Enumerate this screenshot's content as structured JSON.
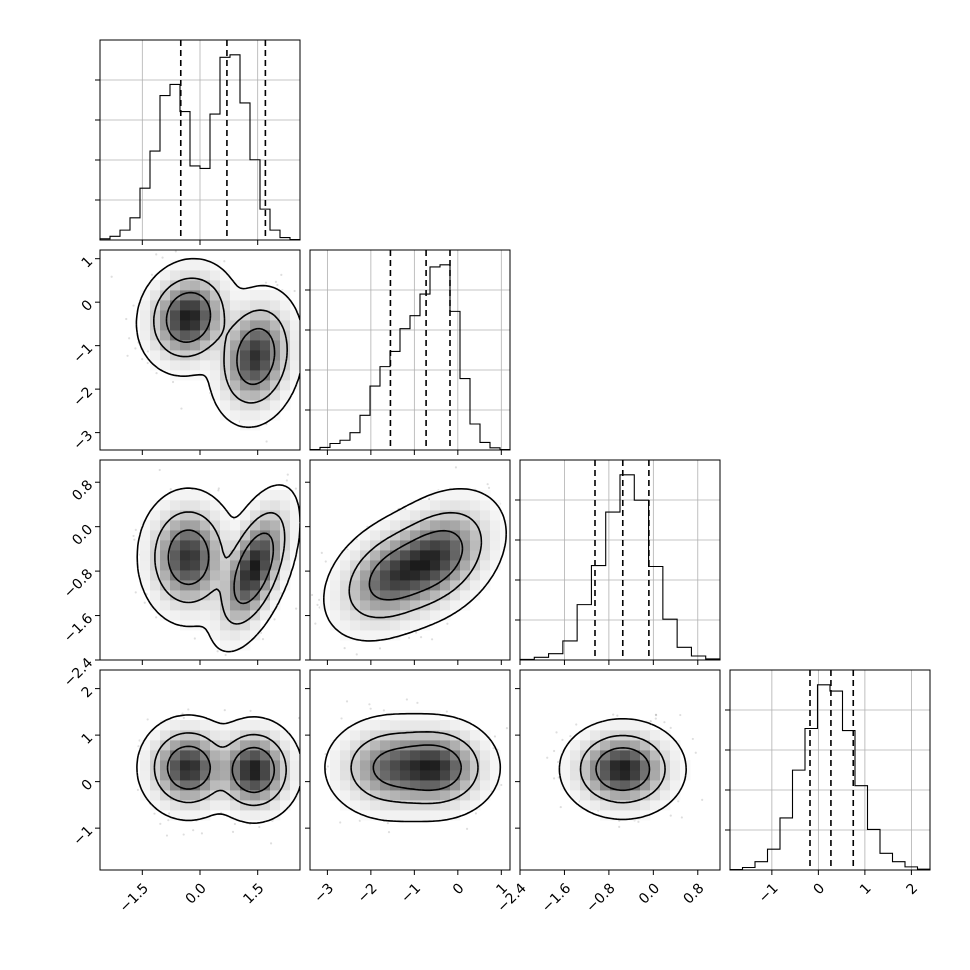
{
  "chart_data": {
    "type": "corner",
    "variables": [
      {
        "range": [
          -2.6,
          2.6
        ],
        "ticks": [
          -1.5,
          0.0,
          1.5
        ],
        "tick_labels": [
          "−1.5",
          "0.0",
          "1.5"
        ],
        "quantiles": [
          -0.5,
          0.7,
          1.7
        ],
        "hist_bins": [
          -2.6,
          2.6
        ],
        "hist_counts": [
          5,
          15,
          40,
          90,
          210,
          360,
          585,
          630,
          520,
          300,
          290,
          510,
          740,
          750,
          555,
          325,
          125,
          40,
          10,
          2
        ]
      },
      {
        "range": [
          -3.4,
          1.2
        ],
        "ticks": [
          -3,
          -2,
          -1,
          0,
          1
        ],
        "tick_labels": [
          "−3",
          "−2",
          "−1",
          "0",
          "1"
        ],
        "quantiles": [
          -1.55,
          -0.73,
          -0.18
        ],
        "hist_bins": [
          -3.4,
          1.2
        ],
        "hist_counts": [
          2,
          12,
          30,
          45,
          80,
          160,
          295,
          385,
          455,
          560,
          620,
          720,
          845,
          855,
          640,
          330,
          120,
          35,
          10,
          2
        ]
      },
      {
        "range": [
          -2.4,
          1.2
        ],
        "ticks": [
          -2.4,
          -1.6,
          -0.8,
          0.0,
          0.8
        ],
        "tick_labels": [
          "−2.4",
          "−1.6",
          "−0.8",
          "0.0",
          "0.8"
        ],
        "quantiles": [
          -1.05,
          -0.55,
          -0.08
        ],
        "hist_bins": [
          -2.4,
          1.2
        ],
        "hist_counts": [
          3,
          15,
          35,
          105,
          305,
          520,
          815,
          1020,
          880,
          515,
          225,
          70,
          22,
          6
        ]
      },
      {
        "range": [
          -1.9,
          2.4
        ],
        "ticks": [
          -1,
          0,
          1,
          2
        ],
        "tick_labels": [
          "−1",
          "0",
          "1",
          "2"
        ],
        "quantiles": [
          -0.18,
          0.27,
          0.75
        ],
        "hist_bins": [
          -1.9,
          2.4
        ],
        "hist_counts": [
          2,
          12,
          40,
          100,
          250,
          480,
          680,
          890,
          860,
          670,
          405,
          195,
          80,
          40,
          15,
          4
        ]
      }
    ],
    "pairs": [
      {
        "x_var": 0,
        "y_var": 1,
        "modes": [
          {
            "cx": -0.3,
            "cy": -0.35,
            "sx": 0.45,
            "sy": 0.45,
            "rho": 0.1,
            "w": 0.5
          },
          {
            "cx": 1.45,
            "cy": -1.25,
            "sx": 0.42,
            "sy": 0.55,
            "rho": 0.15,
            "w": 0.5
          }
        ]
      },
      {
        "x_var": 0,
        "y_var": 2,
        "modes": [
          {
            "cx": -0.3,
            "cy": -0.55,
            "sx": 0.45,
            "sy": 0.42,
            "rho": 0.0,
            "w": 0.5
          },
          {
            "cx": 1.4,
            "cy": -0.75,
            "sx": 0.4,
            "sy": 0.5,
            "rho": 0.55,
            "w": 0.5
          }
        ]
      },
      {
        "x_var": 0,
        "y_var": 3,
        "modes": [
          {
            "cx": -0.3,
            "cy": 0.3,
            "sx": 0.45,
            "sy": 0.38,
            "rho": 0.0,
            "w": 0.5
          },
          {
            "cx": 1.4,
            "cy": 0.25,
            "sx": 0.42,
            "sy": 0.38,
            "rho": 0.0,
            "w": 0.5
          }
        ]
      },
      {
        "x_var": 1,
        "y_var": 2,
        "modes": [
          {
            "cx": -0.5,
            "cy": -0.55,
            "sx": 0.55,
            "sy": 0.42,
            "rho": 0.35,
            "w": 0.55
          },
          {
            "cx": -1.5,
            "cy": -0.9,
            "sx": 0.55,
            "sy": 0.4,
            "rho": 0.35,
            "w": 0.45
          }
        ]
      },
      {
        "x_var": 1,
        "y_var": 3,
        "modes": [
          {
            "cx": -0.5,
            "cy": 0.3,
            "sx": 0.5,
            "sy": 0.38,
            "rho": 0.0,
            "w": 0.55
          },
          {
            "cx": -1.5,
            "cy": 0.3,
            "sx": 0.55,
            "sy": 0.4,
            "rho": 0.0,
            "w": 0.45
          }
        ]
      },
      {
        "x_var": 2,
        "y_var": 3,
        "modes": [
          {
            "cx": -0.55,
            "cy": 0.27,
            "sx": 0.38,
            "sy": 0.36,
            "rho": 0.0,
            "w": 1.0
          }
        ]
      }
    ],
    "contour_levels": [
      0.39,
      0.86,
      0.99
    ],
    "scatter_points_per_panel": 1100,
    "grid": true,
    "colors": {
      "density": "#000000",
      "line": "#000000",
      "grid": "#b0b0b0"
    }
  }
}
